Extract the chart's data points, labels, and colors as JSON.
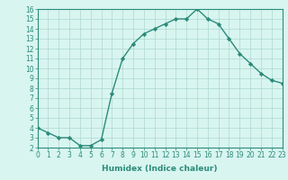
{
  "x": [
    0,
    1,
    2,
    3,
    4,
    5,
    6,
    7,
    8,
    9,
    10,
    11,
    12,
    13,
    14,
    15,
    16,
    17,
    18,
    19,
    20,
    21,
    22,
    23
  ],
  "y": [
    4,
    3.5,
    3,
    3,
    2.2,
    2.2,
    2.8,
    7.5,
    11,
    12.5,
    13.5,
    14,
    14.5,
    15,
    15,
    16,
    15,
    14.5,
    13,
    11.5,
    10.5,
    9.5,
    8.8,
    8.5
  ],
  "line_color": "#2d8b7a",
  "marker_color": "#2d8b7a",
  "bg_color": "#d8f5f0",
  "grid_color": "#aed8d0",
  "xlabel": "Humidex (Indice chaleur)",
  "xlim": [
    0,
    23
  ],
  "ylim": [
    2,
    16
  ],
  "yticks": [
    2,
    3,
    4,
    5,
    6,
    7,
    8,
    9,
    10,
    11,
    12,
    13,
    14,
    15,
    16
  ],
  "xtick_labels": [
    "0",
    "1",
    "2",
    "3",
    "4",
    "5",
    "6",
    "7",
    "8",
    "9",
    "10",
    "11",
    "12",
    "13",
    "14",
    "15",
    "16",
    "17",
    "18",
    "19",
    "20",
    "21",
    "22",
    "23"
  ],
  "axis_color": "#2d8b7a",
  "tick_color": "#2d8b7a",
  "label_fontsize": 6.5,
  "tick_fontsize": 5.5
}
